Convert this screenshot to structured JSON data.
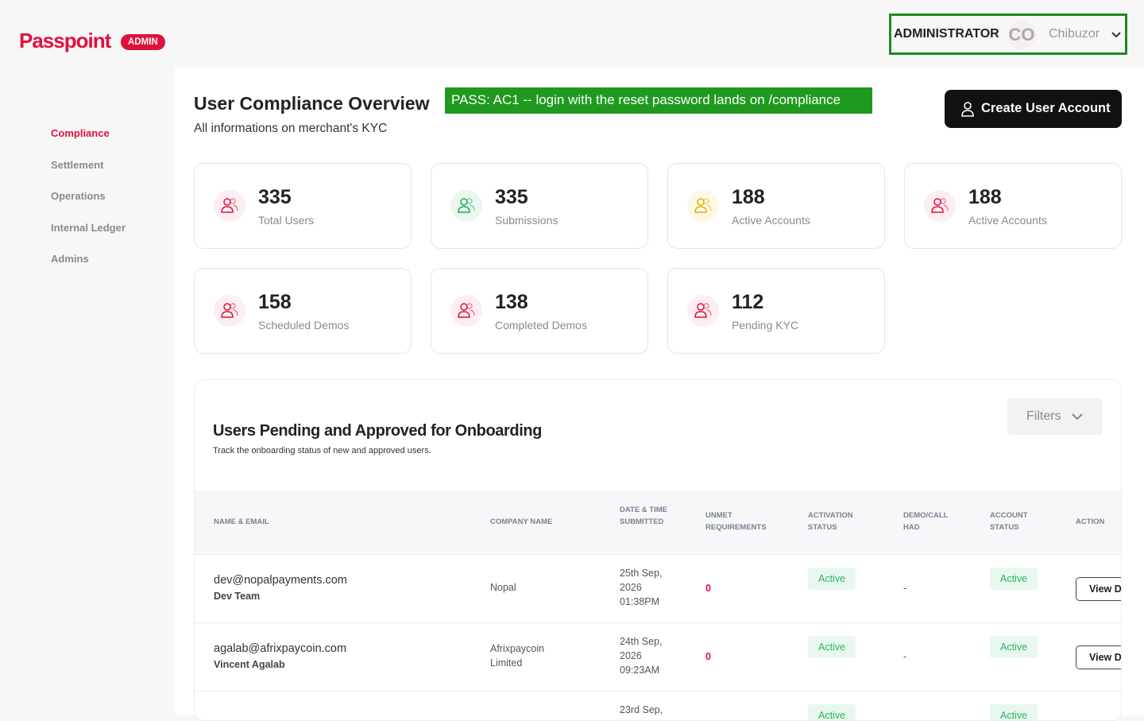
{
  "header": {
    "logo": "Passpoint",
    "badge": "ADMIN",
    "role": "ADMINISTRATOR",
    "initials": "CO",
    "user": "Chibuzor"
  },
  "banner": "PASS: AC1 -- login with the reset password lands on /compliance",
  "sidebar": [
    "Compliance",
    "Settlement",
    "Operations",
    "Internal Ledger",
    "Admins"
  ],
  "page": {
    "title": "User Compliance Overview",
    "subtitle": "All informations on merchant's KYC",
    "button": "Create User Account"
  },
  "stats": [
    {
      "value": 335,
      "label": "Total Users"
    },
    {
      "value": 335,
      "label": "Submissions"
    },
    {
      "value": 188,
      "label": "Active Accounts"
    },
    {
      "value": 188,
      "label": "Active Accounts"
    },
    {
      "value": 158,
      "label": "Scheduled Demos"
    },
    {
      "value": 138,
      "label": "Completed Demos"
    },
    {
      "value": 112,
      "label": "Pending KYC"
    }
  ],
  "table": {
    "title": "Users Pending and Approved for Onboarding",
    "subtitle": "Track the onboarding status of new and approved users.",
    "filters": "Filters",
    "columns": [
      "NAME & EMAIL",
      "COMPANY NAME",
      "DATE & TIME SUBMITTED",
      "UNMET REQUIREMENTS",
      "ACTIVATION STATUS",
      "DEMO/CALL HAD",
      "ACCOUNT STATUS",
      "ACTION"
    ],
    "rows": [
      {
        "email": "dev@nopalpayments.com",
        "name": "Dev Team",
        "company": "Nopal",
        "date": "25th Sep, 2026 01:38PM",
        "unmet": 0,
        "activation": "Active",
        "demo": "-",
        "account": "Active",
        "action": "View Details"
      },
      {
        "email": "agalab@afrixpaycoin.com",
        "name": "Vincent Agalab",
        "company": "Afrixpaycoin Limited",
        "date": "24th Sep, 2026 09:23AM",
        "unmet": 0,
        "activation": "Active",
        "demo": "-",
        "account": "Active",
        "action": "View Details"
      },
      {
        "date": "23rd Sep,",
        "activation": "Active",
        "account": "Active"
      }
    ]
  }
}
